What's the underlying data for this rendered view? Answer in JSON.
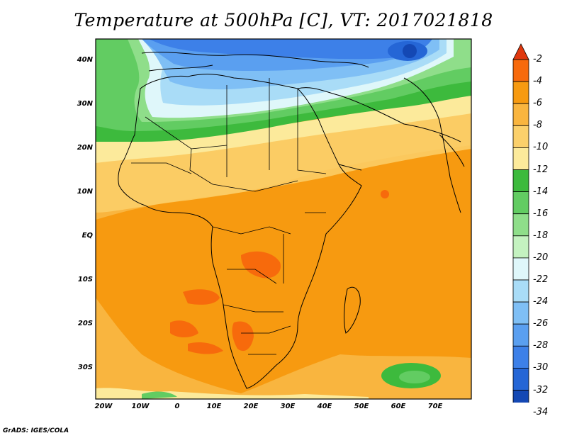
{
  "title": "Temperature at 500hPa [C], VT: 2017021818",
  "credit": "GrADS: IGES/COLA",
  "map": {
    "variable": "Temperature at 500hPa",
    "units": "C",
    "valid_time": "2017021818",
    "lon_range": [
      -22,
      80
    ],
    "lat_range": [
      -37,
      45
    ],
    "lat_labels": [
      "40N",
      "30N",
      "20N",
      "10N",
      "EQ",
      "10S",
      "20S",
      "30S"
    ],
    "lat_values": [
      40,
      30,
      20,
      10,
      0,
      -10,
      -20,
      -30
    ],
    "lon_labels": [
      "20W",
      "10W",
      "0",
      "10E",
      "20E",
      "30E",
      "40E",
      "50E",
      "60E",
      "70E"
    ],
    "lon_values": [
      -20,
      -10,
      0,
      10,
      20,
      30,
      40,
      50,
      60,
      70
    ]
  },
  "colorbar": {
    "labels": [
      "-2",
      "-4",
      "-6",
      "-8",
      "-10",
      "-12",
      "-14",
      "-16",
      "-18",
      "-20",
      "-22",
      "-24",
      "-26",
      "-28",
      "-30",
      "-32",
      "-34"
    ],
    "colors": [
      "#e0380e",
      "#f76a0c",
      "#f79a10",
      "#f9b53f",
      "#fbd06b",
      "#fcea9b",
      "#3dba3d",
      "#62cc62",
      "#8fde8a",
      "#c4f2c0",
      "#dff7fa",
      "#a9dcf7",
      "#7fbff5",
      "#5a9ff0",
      "#3d80e8",
      "#2566d6",
      "#1448b4",
      "#0b1f7a"
    ],
    "top_cap_color": "#e0380e",
    "bottom_cap_color": "#d8d8fc"
  }
}
